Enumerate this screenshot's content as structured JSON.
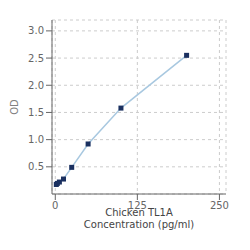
{
  "chart_data": {
    "type": "line",
    "x_label": "Chicken TL1A\nConcentration (pg/ml)",
    "y_label": "OD",
    "x": [
      1.5625,
      3.125,
      6.25,
      12.5,
      25,
      50,
      100,
      200
    ],
    "series": [
      {
        "values": [
          0.175,
          0.195,
          0.22,
          0.275,
          0.49,
          0.92,
          1.58,
          2.55
        ],
        "color": "#a8c8e0",
        "colors": [
          "#1a3060",
          "#1a3060",
          "#1a3060",
          "#1a3060",
          "#1a3060",
          "#1a3060",
          "#1a3060",
          "#1a3060"
        ],
        "marker": "square"
      }
    ],
    "xlim": [
      -5,
      260
    ],
    "xticks": [
      0,
      125,
      250
    ],
    "ylim": [
      0.0,
      3.2
    ],
    "yticks": [
      0.5,
      {
        "value": 1.0,
        "label": "1.0"
      },
      1.5,
      {
        "value": 2.0,
        "label": "2.0"
      },
      2.5,
      {
        "value": 3.0,
        "label": "3.0"
      }
    ],
    "grid": true
  }
}
